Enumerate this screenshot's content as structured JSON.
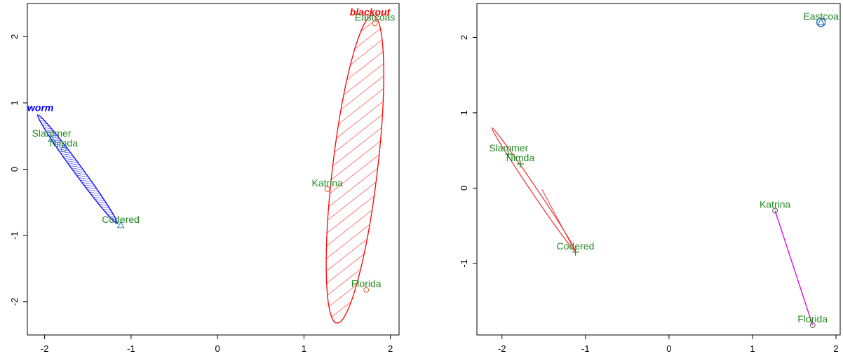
{
  "chart_data": [
    {
      "type": "scatter",
      "xlim": [
        -2.2,
        2.1
      ],
      "ylim": [
        -2.5,
        2.5
      ],
      "xticks": [
        -2,
        -1,
        0,
        1,
        2
      ],
      "yticks": [
        -2,
        -1,
        0,
        1,
        2
      ],
      "grid": false,
      "label_color": "#228B22",
      "points": [
        {
          "label": "Slammer",
          "x": -1.92,
          "y": 0.45,
          "marker": "triangle",
          "color": "#1f77b4"
        },
        {
          "label": "Nimda",
          "x": -1.78,
          "y": 0.3,
          "marker": "circle",
          "color": "#1f77b4"
        },
        {
          "label": "Codered",
          "x": -1.12,
          "y": -0.85,
          "marker": "triangle",
          "color": "#1f77b4"
        },
        {
          "label": "Katrina",
          "x": 1.27,
          "y": -0.3,
          "marker": "circle",
          "color": "#e4572e"
        },
        {
          "label": "Florida",
          "x": 1.72,
          "y": -1.82,
          "marker": "circle",
          "color": "#e4572e"
        },
        {
          "label": "Eastcoas",
          "x": 1.82,
          "y": 2.2,
          "marker": "circle",
          "color": "#e4572e"
        }
      ],
      "groups": [
        {
          "label": "worm",
          "color": "#0000ff",
          "fill": "hatched",
          "label_x": -2.2,
          "label_y": 0.88,
          "ellipse": {
            "cx": -1.62,
            "cy": 0.0,
            "ax_end": [
              -2.08,
              0.82
            ],
            "minor": 0.05
          }
        },
        {
          "label": "blackout",
          "color": "#ff0000",
          "fill": "hatched",
          "label_x": 1.53,
          "label_y": 2.32,
          "ellipse": {
            "cx": 1.59,
            "cy": 0.0,
            "ax_end": [
              1.8,
              2.32
            ],
            "minor": 0.26
          }
        }
      ]
    },
    {
      "type": "scatter",
      "xlim": [
        -2.3,
        2.05
      ],
      "ylim": [
        -1.95,
        2.45
      ],
      "xticks": [
        -2,
        -1,
        0,
        1,
        2
      ],
      "yticks": [
        -1,
        0,
        1,
        2
      ],
      "grid": false,
      "label_color": "#228B22",
      "points": [
        {
          "label": "Slammer",
          "x": -1.92,
          "y": 0.45,
          "marker": "plus",
          "color": "#228B22"
        },
        {
          "label": "Nimda",
          "x": -1.78,
          "y": 0.32,
          "marker": "plus",
          "color": "#228B22"
        },
        {
          "label": "Codered",
          "x": -1.12,
          "y": -0.85,
          "marker": "plus",
          "color": "#228B22"
        },
        {
          "label": "Katrina",
          "x": 1.27,
          "y": -0.3,
          "marker": "circle",
          "color": "#555555"
        },
        {
          "label": "Florida",
          "x": 1.72,
          "y": -1.82,
          "marker": "circle",
          "color": "#555555"
        },
        {
          "label": "Eastcoa",
          "x": 1.82,
          "y": 2.2,
          "marker": "triangle",
          "color": "#1f5fbf"
        }
      ],
      "groups": [
        {
          "label": "",
          "color": "#ee3b3b",
          "fill": "none",
          "ellipse": {
            "cx": -1.62,
            "cy": -0.02,
            "ax_end": [
              -2.12,
              0.8
            ],
            "minor": 0.035
          }
        },
        {
          "label": "",
          "color": "#dd00dd",
          "fill": "segment",
          "segment": [
            [
              1.27,
              -0.3
            ],
            [
              1.72,
              -1.82
            ]
          ]
        },
        {
          "label": "",
          "color": "#1f5fbf",
          "fill": "circle-marker",
          "center": [
            1.82,
            2.2
          ]
        }
      ]
    }
  ]
}
